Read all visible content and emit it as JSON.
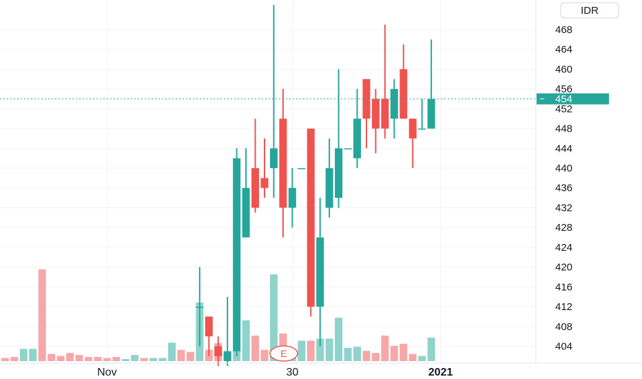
{
  "chart_data": {
    "type": "candlestick",
    "currency_badge": "IDR",
    "last_price": {
      "label": "454",
      "value": 454,
      "color": "#26a69a"
    },
    "earnings_marker": {
      "label": "E",
      "x": 30
    },
    "y_ticks": [
      404,
      408,
      412,
      416,
      420,
      424,
      428,
      432,
      436,
      440,
      444,
      448,
      452,
      456,
      460,
      464,
      468
    ],
    "y_tick_labels": [
      "404",
      "408",
      "412",
      "416",
      "420",
      "424",
      "428",
      "432",
      "436",
      "440",
      "444",
      "448",
      "452",
      "456",
      "460",
      "464",
      "468"
    ],
    "ylim": [
      399.5,
      473.5
    ],
    "x_labels": [
      {
        "text": "Nov",
        "x": 11,
        "bold": false
      },
      {
        "text": "30",
        "x": 31,
        "bold": false
      },
      {
        "text": "2021",
        "x": 47,
        "bold": true
      }
    ],
    "xlim": [
      0,
      58
    ],
    "colors": {
      "up": "#26a69a",
      "down": "#ef5350",
      "up_volume": "#8fd3cb",
      "down_volume": "#f5a8a7"
    },
    "candles": [
      {
        "x": 21,
        "o": 412,
        "h": 420,
        "l": 404,
        "c": 412
      },
      {
        "x": 22,
        "o": 410,
        "h": 410,
        "l": 402,
        "c": 406
      },
      {
        "x": 23,
        "o": 404,
        "h": 406,
        "l": 400,
        "c": 402
      },
      {
        "x": 24,
        "o": 401,
        "h": 414,
        "l": 400,
        "c": 403
      },
      {
        "x": 25,
        "o": 403,
        "h": 444,
        "l": 402,
        "c": 442
      },
      {
        "x": 26,
        "o": 426,
        "h": 444,
        "l": 426,
        "c": 436
      },
      {
        "x": 27,
        "o": 440,
        "h": 450,
        "l": 431,
        "c": 432
      },
      {
        "x": 28,
        "o": 438,
        "h": 446,
        "l": 434,
        "c": 436
      },
      {
        "x": 29,
        "o": 440,
        "h": 473,
        "l": 434,
        "c": 444
      },
      {
        "x": 30,
        "o": 450,
        "h": 456,
        "l": 426,
        "c": 432
      },
      {
        "x": 31,
        "o": 432,
        "h": 440,
        "l": 428,
        "c": 436
      },
      {
        "x": 32,
        "o": 440,
        "h": 440,
        "l": 440,
        "c": 440
      },
      {
        "x": 33,
        "o": 448,
        "h": 448,
        "l": 410,
        "c": 412
      },
      {
        "x": 34,
        "o": 412,
        "h": 434,
        "l": 404,
        "c": 426
      },
      {
        "x": 35,
        "o": 432,
        "h": 446,
        "l": 430,
        "c": 440
      },
      {
        "x": 36,
        "o": 434,
        "h": 460,
        "l": 432,
        "c": 444
      },
      {
        "x": 37,
        "o": 444,
        "h": 444,
        "l": 444,
        "c": 444
      },
      {
        "x": 38,
        "o": 442,
        "h": 456,
        "l": 440,
        "c": 450
      },
      {
        "x": 39,
        "o": 458,
        "h": 458,
        "l": 444,
        "c": 450
      },
      {
        "x": 40,
        "o": 454,
        "h": 456,
        "l": 443,
        "c": 448
      },
      {
        "x": 41,
        "o": 454,
        "h": 469,
        "l": 446,
        "c": 448
      },
      {
        "x": 42,
        "o": 450,
        "h": 458,
        "l": 446,
        "c": 456
      },
      {
        "x": 43,
        "o": 460,
        "h": 465,
        "l": 450,
        "c": 450
      },
      {
        "x": 44,
        "o": 450,
        "h": 450,
        "l": 440,
        "c": 446
      },
      {
        "x": 45,
        "o": 448,
        "h": 454,
        "l": 448,
        "c": 448
      },
      {
        "x": 46,
        "o": 448,
        "h": 466,
        "l": 448,
        "c": 454
      }
    ],
    "volumes": [
      {
        "x": 0,
        "v": 0.6,
        "dir": "down"
      },
      {
        "x": 1,
        "v": 0.8,
        "dir": "down"
      },
      {
        "x": 2,
        "v": 2.4,
        "dir": "up"
      },
      {
        "x": 3,
        "v": 2.4,
        "dir": "up"
      },
      {
        "x": 4,
        "v": 18,
        "dir": "down"
      },
      {
        "x": 5,
        "v": 1.4,
        "dir": "down"
      },
      {
        "x": 6,
        "v": 1.0,
        "dir": "down"
      },
      {
        "x": 7,
        "v": 1.6,
        "dir": "down"
      },
      {
        "x": 8,
        "v": 1.2,
        "dir": "down"
      },
      {
        "x": 9,
        "v": 0.8,
        "dir": "down"
      },
      {
        "x": 10,
        "v": 0.8,
        "dir": "down"
      },
      {
        "x": 11,
        "v": 0.6,
        "dir": "down"
      },
      {
        "x": 12,
        "v": 0.8,
        "dir": "down"
      },
      {
        "x": 13,
        "v": 0.4,
        "dir": "up"
      },
      {
        "x": 14,
        "v": 1.2,
        "dir": "up"
      },
      {
        "x": 15,
        "v": 0.6,
        "dir": "down"
      },
      {
        "x": 16,
        "v": 0.6,
        "dir": "up"
      },
      {
        "x": 17,
        "v": 0.6,
        "dir": "up"
      },
      {
        "x": 18,
        "v": 3.6,
        "dir": "up"
      },
      {
        "x": 19,
        "v": 2.2,
        "dir": "down"
      },
      {
        "x": 20,
        "v": 1.8,
        "dir": "down"
      },
      {
        "x": 21,
        "v": 11.5,
        "dir": "up"
      },
      {
        "x": 22,
        "v": 2.2,
        "dir": "down"
      },
      {
        "x": 23,
        "v": 3.5,
        "dir": "down"
      },
      {
        "x": 24,
        "v": 1.6,
        "dir": "up"
      },
      {
        "x": 25,
        "v": 2.0,
        "dir": "up"
      },
      {
        "x": 26,
        "v": 8.0,
        "dir": "up"
      },
      {
        "x": 27,
        "v": 5.0,
        "dir": "down"
      },
      {
        "x": 28,
        "v": 2.2,
        "dir": "down"
      },
      {
        "x": 29,
        "v": 17.0,
        "dir": "up"
      },
      {
        "x": 30,
        "v": 5.4,
        "dir": "down"
      },
      {
        "x": 31,
        "v": 1.0,
        "dir": "up"
      },
      {
        "x": 32,
        "v": 4.0,
        "dir": "up"
      },
      {
        "x": 33,
        "v": 4.0,
        "dir": "down"
      },
      {
        "x": 34,
        "v": 4.4,
        "dir": "up"
      },
      {
        "x": 35,
        "v": 4.4,
        "dir": "up"
      },
      {
        "x": 36,
        "v": 8.5,
        "dir": "up"
      },
      {
        "x": 37,
        "v": 2.6,
        "dir": "up"
      },
      {
        "x": 38,
        "v": 2.8,
        "dir": "up"
      },
      {
        "x": 39,
        "v": 2.0,
        "dir": "down"
      },
      {
        "x": 40,
        "v": 1.6,
        "dir": "down"
      },
      {
        "x": 41,
        "v": 5.0,
        "dir": "down"
      },
      {
        "x": 42,
        "v": 3.0,
        "dir": "down"
      },
      {
        "x": 43,
        "v": 3.4,
        "dir": "down"
      },
      {
        "x": 44,
        "v": 1.4,
        "dir": "down"
      },
      {
        "x": 45,
        "v": 1.0,
        "dir": "up"
      },
      {
        "x": 46,
        "v": 4.6,
        "dir": "up"
      }
    ]
  }
}
